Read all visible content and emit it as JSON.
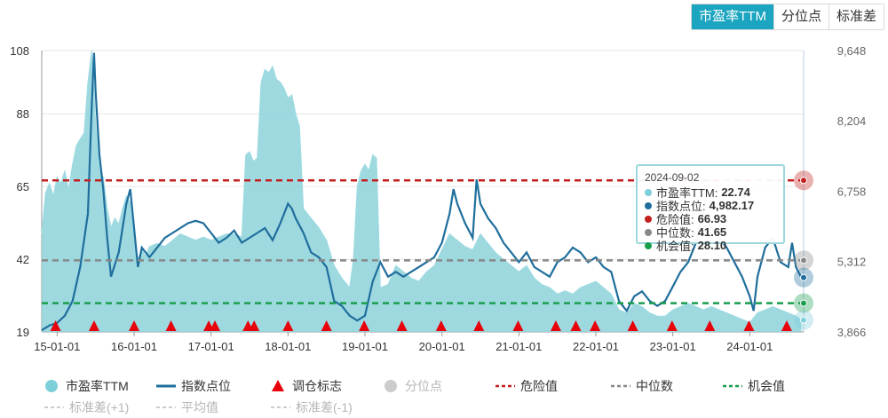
{
  "tabs": [
    "市盈率TTM",
    "分位点",
    "标准差"
  ],
  "active_tab": 0,
  "tooltip": {
    "date": "2024-09-02",
    "rows": [
      {
        "label": "市盈率TTM:",
        "value": "22.74",
        "color": "#7dcfd9"
      },
      {
        "label": "指数点位:",
        "value": "4,982.17",
        "color": "#1f6e9c"
      },
      {
        "label": "危险值:",
        "value": "66.93",
        "color": "#c41f1f"
      },
      {
        "label": "中位数:",
        "value": "41.65",
        "color": "#888888"
      },
      {
        "label": "机会值:",
        "value": "28.10",
        "color": "#1a9e4e"
      }
    ]
  },
  "legend": {
    "row1": [
      "市盈率TTM",
      "指数点位",
      "调仓标志",
      "分位点",
      "危险值",
      "中位数",
      "机会值"
    ],
    "row2": [
      "标准差(+1)",
      "平均值",
      "标准差(-1)"
    ]
  },
  "colors": {
    "pe_fill": "#8dd2db",
    "index_line": "#1f6e9c",
    "danger": "#c41f1f",
    "median": "#888888",
    "opportunity": "#1a9e4e",
    "marker": "#e8000b",
    "accent_tab": "#1ba5c0"
  },
  "chart_data": {
    "type": "line",
    "left_axis": {
      "ticks": [
        "108",
        "88",
        "65",
        "42",
        "19"
      ],
      "ylim": [
        19,
        108
      ]
    },
    "right_axis": {
      "ticks": [
        "9,648",
        "8,204",
        "6,758",
        "5,312",
        "3,866"
      ],
      "ylim": [
        3866,
        9648
      ]
    },
    "x_ticks": [
      "15-01-01",
      "16-01-01",
      "17-01-01",
      "18-01-01",
      "19-01-01",
      "20-01-01",
      "21-01-01",
      "22-01-01",
      "23-01-01",
      "24-01-01"
    ],
    "x_range": [
      2014.8,
      2024.7
    ],
    "reference_lines": {
      "danger": 66.93,
      "median": 41.65,
      "opportunity": 28.1
    },
    "series": [
      {
        "name": "市盈率TTM",
        "axis": "left",
        "points": [
          [
            2014.8,
            50
          ],
          [
            2014.85,
            63
          ],
          [
            2014.9,
            66
          ],
          [
            2014.95,
            62
          ],
          [
            2015.0,
            68
          ],
          [
            2015.05,
            66
          ],
          [
            2015.1,
            70
          ],
          [
            2015.15,
            64
          ],
          [
            2015.2,
            72
          ],
          [
            2015.25,
            78
          ],
          [
            2015.3,
            80
          ],
          [
            2015.35,
            82
          ],
          [
            2015.4,
            98
          ],
          [
            2015.45,
            108
          ],
          [
            2015.5,
            85
          ],
          [
            2015.55,
            70
          ],
          [
            2015.6,
            68
          ],
          [
            2015.65,
            58
          ],
          [
            2015.7,
            52
          ],
          [
            2015.75,
            55
          ],
          [
            2015.8,
            53
          ],
          [
            2015.85,
            58
          ],
          [
            2015.9,
            62
          ],
          [
            2015.95,
            60
          ],
          [
            2016.0,
            48
          ],
          [
            2016.05,
            42
          ],
          [
            2016.1,
            45
          ],
          [
            2016.15,
            43
          ],
          [
            2016.2,
            46
          ],
          [
            2016.3,
            47
          ],
          [
            2016.4,
            46
          ],
          [
            2016.5,
            48
          ],
          [
            2016.6,
            50
          ],
          [
            2016.7,
            49
          ],
          [
            2016.8,
            48
          ],
          [
            2016.9,
            49
          ],
          [
            2017.0,
            48
          ],
          [
            2017.1,
            49
          ],
          [
            2017.2,
            50
          ],
          [
            2017.3,
            50
          ],
          [
            2017.4,
            49
          ],
          [
            2017.45,
            75
          ],
          [
            2017.5,
            76
          ],
          [
            2017.55,
            73
          ],
          [
            2017.6,
            74
          ],
          [
            2017.65,
            98
          ],
          [
            2017.7,
            102
          ],
          [
            2017.75,
            101
          ],
          [
            2017.8,
            103
          ],
          [
            2017.85,
            99
          ],
          [
            2017.9,
            98
          ],
          [
            2017.95,
            96
          ],
          [
            2018.0,
            93
          ],
          [
            2018.05,
            94
          ],
          [
            2018.1,
            88
          ],
          [
            2018.15,
            84
          ],
          [
            2018.2,
            58
          ],
          [
            2018.3,
            55
          ],
          [
            2018.4,
            52
          ],
          [
            2018.5,
            48
          ],
          [
            2018.6,
            40
          ],
          [
            2018.7,
            36
          ],
          [
            2018.8,
            33
          ],
          [
            2018.85,
            42
          ],
          [
            2018.9,
            65
          ],
          [
            2018.95,
            70
          ],
          [
            2019.0,
            72
          ],
          [
            2019.05,
            70
          ],
          [
            2019.1,
            75
          ],
          [
            2019.15,
            74
          ],
          [
            2019.2,
            33
          ],
          [
            2019.3,
            34
          ],
          [
            2019.4,
            40
          ],
          [
            2019.5,
            38
          ],
          [
            2019.6,
            36
          ],
          [
            2019.7,
            35
          ],
          [
            2019.8,
            38
          ],
          [
            2019.9,
            40
          ],
          [
            2020.0,
            45
          ],
          [
            2020.1,
            50
          ],
          [
            2020.2,
            48
          ],
          [
            2020.3,
            46
          ],
          [
            2020.4,
            45
          ],
          [
            2020.5,
            50
          ],
          [
            2020.6,
            47
          ],
          [
            2020.7,
            44
          ],
          [
            2020.8,
            42
          ],
          [
            2020.9,
            40
          ],
          [
            2021.0,
            38
          ],
          [
            2021.1,
            40
          ],
          [
            2021.2,
            36
          ],
          [
            2021.3,
            34
          ],
          [
            2021.4,
            33
          ],
          [
            2021.5,
            31
          ],
          [
            2021.6,
            32
          ],
          [
            2021.7,
            31
          ],
          [
            2021.8,
            33
          ],
          [
            2021.9,
            34
          ],
          [
            2022.0,
            35
          ],
          [
            2022.1,
            33
          ],
          [
            2022.2,
            31
          ],
          [
            2022.3,
            26
          ],
          [
            2022.4,
            25
          ],
          [
            2022.5,
            28
          ],
          [
            2022.6,
            27
          ],
          [
            2022.7,
            25
          ],
          [
            2022.8,
            24
          ],
          [
            2022.9,
            24
          ],
          [
            2023.0,
            26
          ],
          [
            2023.1,
            27
          ],
          [
            2023.2,
            28
          ],
          [
            2023.3,
            27
          ],
          [
            2023.4,
            26
          ],
          [
            2023.5,
            27
          ],
          [
            2023.6,
            26
          ],
          [
            2023.7,
            25
          ],
          [
            2023.8,
            24
          ],
          [
            2023.9,
            23
          ],
          [
            2024.0,
            22
          ],
          [
            2024.1,
            25
          ],
          [
            2024.2,
            26
          ],
          [
            2024.3,
            27
          ],
          [
            2024.4,
            26
          ],
          [
            2024.5,
            25
          ],
          [
            2024.6,
            24
          ],
          [
            2024.67,
            22.74
          ]
        ]
      },
      {
        "name": "指数点位",
        "axis": "right",
        "points": [
          [
            2014.8,
            3900
          ],
          [
            2014.9,
            4000
          ],
          [
            2015.0,
            4050
          ],
          [
            2015.1,
            4200
          ],
          [
            2015.2,
            4500
          ],
          [
            2015.3,
            5200
          ],
          [
            2015.4,
            6300
          ],
          [
            2015.45,
            8500
          ],
          [
            2015.48,
            9600
          ],
          [
            2015.5,
            8800
          ],
          [
            2015.55,
            7500
          ],
          [
            2015.6,
            6800
          ],
          [
            2015.65,
            5800
          ],
          [
            2015.7,
            5000
          ],
          [
            2015.8,
            5500
          ],
          [
            2015.9,
            6500
          ],
          [
            2015.95,
            6800
          ],
          [
            2016.0,
            6000
          ],
          [
            2016.05,
            5200
          ],
          [
            2016.1,
            5600
          ],
          [
            2016.2,
            5400
          ],
          [
            2016.3,
            5600
          ],
          [
            2016.4,
            5800
          ],
          [
            2016.5,
            5900
          ],
          [
            2016.6,
            6000
          ],
          [
            2016.7,
            6100
          ],
          [
            2016.8,
            6150
          ],
          [
            2016.9,
            6100
          ],
          [
            2017.0,
            5900
          ],
          [
            2017.1,
            5700
          ],
          [
            2017.2,
            5800
          ],
          [
            2017.3,
            5950
          ],
          [
            2017.4,
            5700
          ],
          [
            2017.5,
            5800
          ],
          [
            2017.6,
            5900
          ],
          [
            2017.7,
            6000
          ],
          [
            2017.8,
            5750
          ],
          [
            2017.9,
            6100
          ],
          [
            2018.0,
            6500
          ],
          [
            2018.05,
            6400
          ],
          [
            2018.1,
            6200
          ],
          [
            2018.2,
            5900
          ],
          [
            2018.3,
            5500
          ],
          [
            2018.4,
            5400
          ],
          [
            2018.5,
            5200
          ],
          [
            2018.6,
            4500
          ],
          [
            2018.7,
            4400
          ],
          [
            2018.8,
            4200
          ],
          [
            2018.9,
            4100
          ],
          [
            2019.0,
            4200
          ],
          [
            2019.1,
            4900
          ],
          [
            2019.2,
            5300
          ],
          [
            2019.3,
            5000
          ],
          [
            2019.4,
            5100
          ],
          [
            2019.5,
            5000
          ],
          [
            2019.6,
            5100
          ],
          [
            2019.7,
            5200
          ],
          [
            2019.8,
            5300
          ],
          [
            2019.9,
            5400
          ],
          [
            2020.0,
            5700
          ],
          [
            2020.1,
            6300
          ],
          [
            2020.15,
            6800
          ],
          [
            2020.2,
            6500
          ],
          [
            2020.3,
            6100
          ],
          [
            2020.4,
            5800
          ],
          [
            2020.45,
            7000
          ],
          [
            2020.5,
            6500
          ],
          [
            2020.6,
            6200
          ],
          [
            2020.7,
            6000
          ],
          [
            2020.8,
            5700
          ],
          [
            2020.9,
            5500
          ],
          [
            2021.0,
            5300
          ],
          [
            2021.1,
            5500
          ],
          [
            2021.2,
            5200
          ],
          [
            2021.3,
            5100
          ],
          [
            2021.4,
            5000
          ],
          [
            2021.5,
            5300
          ],
          [
            2021.6,
            5400
          ],
          [
            2021.7,
            5600
          ],
          [
            2021.8,
            5500
          ],
          [
            2021.9,
            5300
          ],
          [
            2022.0,
            5400
          ],
          [
            2022.1,
            5200
          ],
          [
            2022.2,
            5100
          ],
          [
            2022.3,
            4500
          ],
          [
            2022.4,
            4300
          ],
          [
            2022.5,
            4600
          ],
          [
            2022.6,
            4700
          ],
          [
            2022.7,
            4500
          ],
          [
            2022.8,
            4400
          ],
          [
            2022.9,
            4500
          ],
          [
            2023.0,
            4800
          ],
          [
            2023.1,
            5100
          ],
          [
            2023.2,
            5300
          ],
          [
            2023.3,
            5700
          ],
          [
            2023.4,
            6300
          ],
          [
            2023.5,
            6000
          ],
          [
            2023.6,
            5800
          ],
          [
            2023.7,
            5600
          ],
          [
            2023.8,
            5300
          ],
          [
            2023.9,
            5000
          ],
          [
            2024.0,
            4600
          ],
          [
            2024.05,
            4300
          ],
          [
            2024.1,
            5000
          ],
          [
            2024.2,
            5600
          ],
          [
            2024.3,
            5800
          ],
          [
            2024.4,
            5300
          ],
          [
            2024.5,
            5200
          ],
          [
            2024.55,
            5700
          ],
          [
            2024.6,
            5200
          ],
          [
            2024.67,
            4982.17
          ]
        ]
      }
    ],
    "rebalance_markers_x": [
      2014.98,
      2015.48,
      2016.0,
      2016.48,
      2016.97,
      2017.05,
      2017.48,
      2017.56,
      2018.0,
      2018.5,
      2018.99,
      2019.48,
      2019.99,
      2020.48,
      2020.99,
      2021.48,
      2021.74,
      2021.99,
      2022.48,
      2022.99,
      2023.48,
      2023.99,
      2024.48
    ]
  }
}
